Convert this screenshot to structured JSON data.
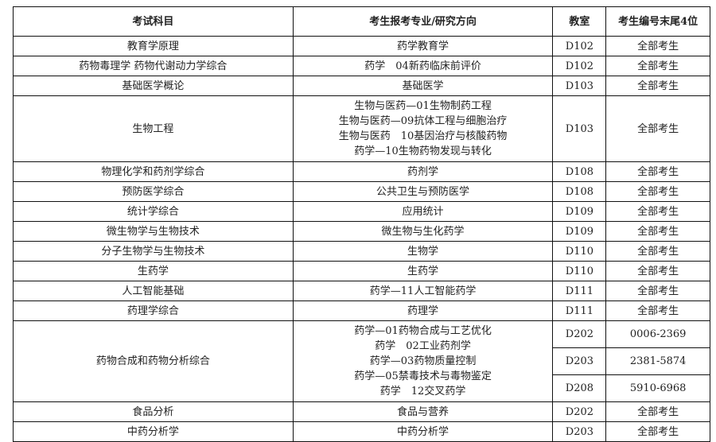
{
  "headers": [
    "考试科目",
    "考生报考专业/研究方向",
    "教室",
    "考生编号末尾4位"
  ],
  "rows": [
    {
      "subject": "教育学原理",
      "major": [
        "药学教育学"
      ],
      "room": "D102",
      "ids": "全部考生"
    },
    {
      "subject": "药物毒理学 药物代谢动力学综合",
      "major": [
        "药学　04新药临床前评价"
      ],
      "room": "D102",
      "ids": "全部考生"
    },
    {
      "subject": "基础医学概论",
      "major": [
        "基础医学"
      ],
      "room": "D103",
      "ids": "全部考生"
    },
    {
      "subject": "生物工程",
      "major": [
        "生物与医药—01生物制药工程",
        "生物与医药—09抗体工程与细胞治疗",
        "生物与医药　10基因治疗与核酸药物",
        "药学—10生物药物发现与转化"
      ],
      "room": "D103",
      "ids": "全部考生"
    },
    {
      "subject": "物理化学和药剂学综合",
      "major": [
        "药剂学"
      ],
      "room": "D108",
      "ids": "全部考生"
    },
    {
      "subject": "预防医学综合",
      "major": [
        "公共卫生与预防医学"
      ],
      "room": "D108",
      "ids": "全部考生"
    },
    {
      "subject": "统计学综合",
      "major": [
        "应用统计"
      ],
      "room": "D109",
      "ids": "全部考生"
    },
    {
      "subject": "微生物学与生物技术",
      "major": [
        "微生物与生化药学"
      ],
      "room": "D109",
      "ids": "全部考生"
    },
    {
      "subject": "分子生物学与生物技术",
      "major": [
        "生物学"
      ],
      "room": "D110",
      "ids": "全部考生"
    },
    {
      "subject": "生药学",
      "major": [
        "生药学"
      ],
      "room": "D110",
      "ids": "全部考生"
    },
    {
      "subject": "人工智能基础",
      "major": [
        "药学—11人工智能药学"
      ],
      "room": "D111",
      "ids": "全部考生"
    },
    {
      "subject": "药理学综合",
      "major": [
        "药理学"
      ],
      "room": "D111",
      "ids": "全部考生"
    }
  ],
  "split_row": {
    "subject": "药物合成和药物分析综合",
    "major": [
      "药学—01药物合成与工艺优化",
      "药学　02工业药剂学",
      "药学—03药物质量控制",
      "药学—05禁毒技术与毒物鉴定",
      "药学　12交叉药学"
    ],
    "sub": [
      {
        "room": "D202",
        "ids": "0006-2369"
      },
      {
        "room": "D203",
        "ids": "2381-5874"
      },
      {
        "room": "D208",
        "ids": "5910-6968"
      }
    ]
  },
  "tail_rows": [
    {
      "subject": "食品分析",
      "major": [
        "食品与营养"
      ],
      "room": "D202",
      "ids": "全部考生"
    },
    {
      "subject": "中药分析学",
      "major": [
        "中药分析学"
      ],
      "room": "D203",
      "ids": "全部考生"
    }
  ]
}
